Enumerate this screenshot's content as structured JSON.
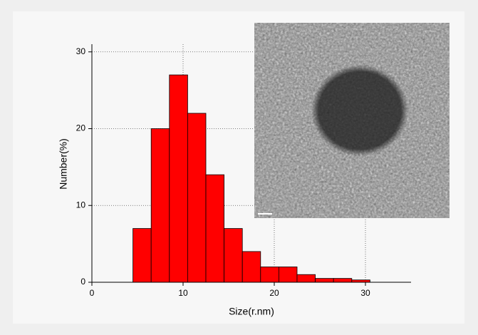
{
  "chart_data": {
    "type": "histogram",
    "xlabel": "Size(r.nm)",
    "ylabel": "Number(%)",
    "bins": [
      4.5,
      6.5,
      8.5,
      10.5,
      12.5,
      14.5,
      16.5,
      18.5,
      20.5,
      22.5,
      24.5,
      26.5,
      28.5,
      30.5
    ],
    "values": [
      7,
      20,
      27,
      22,
      14,
      7,
      4,
      2,
      2,
      1,
      0.5,
      0.5,
      0.3
    ],
    "color": "#ff0000",
    "xlim": [
      0,
      35
    ],
    "xticks": [
      0,
      10,
      20,
      30
    ],
    "ylim": [
      0,
      31
    ],
    "yticks": [
      0,
      10,
      20,
      30
    ],
    "grid": true
  }
}
